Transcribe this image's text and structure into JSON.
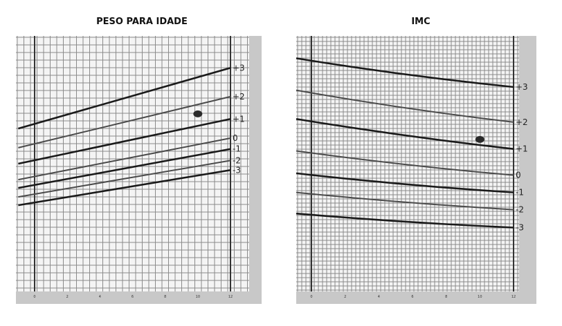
{
  "chart_data": [
    {
      "type": "line",
      "title": "PESO PARA IDADE",
      "xlabel": "",
      "ylabel": "",
      "x_ticks": [
        "0",
        "2",
        "4",
        "6",
        "8",
        "10",
        "12"
      ],
      "xlim": [
        0,
        12
      ],
      "ylim": [
        0,
        40
      ],
      "series": [
        {
          "name": "+3",
          "x": [
            -1,
            12
          ],
          "y": [
            25.5,
            35.0
          ]
        },
        {
          "name": "+2",
          "x": [
            -1,
            12
          ],
          "y": [
            22.5,
            30.5
          ]
        },
        {
          "name": "+1",
          "x": [
            -1,
            12
          ],
          "y": [
            20.0,
            27.0
          ]
        },
        {
          "name": "0",
          "x": [
            -1,
            12
          ],
          "y": [
            17.5,
            24.0
          ]
        },
        {
          "name": "-1",
          "x": [
            -1,
            12
          ],
          "y": [
            16.2,
            22.3
          ]
        },
        {
          "name": "-2",
          "x": [
            -1,
            12
          ],
          "y": [
            14.8,
            20.5
          ]
        },
        {
          "name": "-3",
          "x": [
            -1,
            12
          ],
          "y": [
            13.5,
            19.0
          ]
        }
      ],
      "points": [
        {
          "x": 10.0,
          "y": 27.8
        }
      ],
      "grid": true,
      "colors": {
        "heavy": "#1a1a1a",
        "light": "#4a4a4a",
        "grid": "#8a8a8a",
        "panel": "#c8c8c8"
      }
    },
    {
      "type": "line",
      "title": "IMC",
      "xlabel": "",
      "ylabel": "",
      "x_ticks": [
        "0",
        "2",
        "4",
        "6",
        "8",
        "10",
        "12"
      ],
      "xlim": [
        0,
        12
      ],
      "ylim": [
        0,
        40
      ],
      "series": [
        {
          "name": "+3",
          "x": [
            -1,
            12
          ],
          "y": [
            36.5,
            32.0
          ],
          "curve": 0.6
        },
        {
          "name": "+2",
          "x": [
            -1,
            12
          ],
          "y": [
            31.5,
            26.5
          ],
          "curve": 0.6
        },
        {
          "name": "+1",
          "x": [
            -1,
            12
          ],
          "y": [
            27.0,
            22.3
          ],
          "curve": 0.5
        },
        {
          "name": "0",
          "x": [
            -1,
            12
          ],
          "y": [
            22.0,
            18.2
          ],
          "curve": 0.5
        },
        {
          "name": "-1",
          "x": [
            -1,
            12
          ],
          "y": [
            18.5,
            15.5
          ],
          "curve": 0.5
        },
        {
          "name": "-2",
          "x": [
            -1,
            12
          ],
          "y": [
            15.5,
            12.8
          ],
          "curve": 0.4
        },
        {
          "name": "-3",
          "x": [
            -1,
            12
          ],
          "y": [
            12.2,
            10.0
          ],
          "curve": 0.4
        }
      ],
      "points": [
        {
          "x": 10.0,
          "y": 23.8
        }
      ],
      "grid": true,
      "colors": {
        "heavy": "#1a1a1a",
        "light": "#4a4a4a",
        "grid": "#8a8a8a",
        "panel": "#c8c8c8"
      }
    }
  ]
}
